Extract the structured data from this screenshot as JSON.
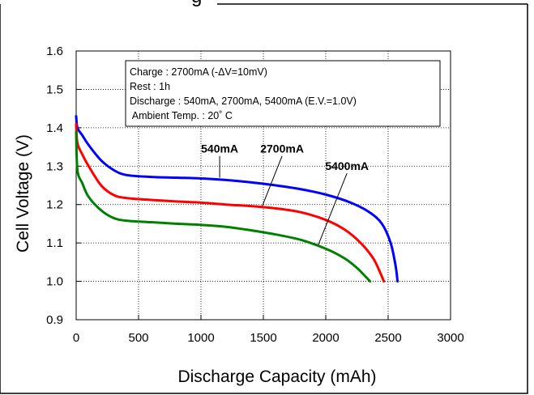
{
  "chart_data": {
    "type": "line",
    "title": "",
    "title_fragment": "g",
    "xlabel": "Discharge Capacity (mAh)",
    "ylabel": "Cell Voltage (V)",
    "xlim": [
      0,
      3000
    ],
    "ylim": [
      0.9,
      1.6
    ],
    "x_ticks": [
      "0",
      "500",
      "1000",
      "1500",
      "2000",
      "2500",
      "3000"
    ],
    "y_ticks": [
      "0.9",
      "1.0",
      "1.1",
      "1.2",
      "1.3",
      "1.4",
      "1.5",
      "1.6"
    ],
    "grid": true,
    "grid_style": "dotted",
    "conditions_box": {
      "position": "top-center",
      "lines": [
        "Charge : 2700mA  (-ΔV=10mV)",
        "Rest : 1h",
        "Discharge : 540mA,  2700mA, 5400mA (E.V.=1.0V)",
        " Ambient Temp. : 20˚ C"
      ]
    },
    "series": [
      {
        "name": "540mA",
        "color": "#0000ff",
        "label_at": [
          1150,
          1.335
        ],
        "pointer_to": [
          1150,
          1.27
        ],
        "points": [
          [
            0,
            1.43
          ],
          [
            10,
            1.4
          ],
          [
            50,
            1.38
          ],
          [
            100,
            1.355
          ],
          [
            200,
            1.315
          ],
          [
            300,
            1.29
          ],
          [
            400,
            1.277
          ],
          [
            600,
            1.272
          ],
          [
            800,
            1.27
          ],
          [
            1000,
            1.268
          ],
          [
            1200,
            1.264
          ],
          [
            1400,
            1.258
          ],
          [
            1600,
            1.25
          ],
          [
            1800,
            1.24
          ],
          [
            2000,
            1.226
          ],
          [
            2200,
            1.205
          ],
          [
            2350,
            1.18
          ],
          [
            2450,
            1.15
          ],
          [
            2520,
            1.1
          ],
          [
            2560,
            1.04
          ],
          [
            2575,
            1.0
          ]
        ]
      },
      {
        "name": "2700mA",
        "color": "#ff0000",
        "label_at": [
          1650,
          1.335
        ],
        "pointer_to": [
          1490,
          1.195
        ],
        "points": [
          [
            0,
            1.41
          ],
          [
            10,
            1.36
          ],
          [
            50,
            1.33
          ],
          [
            100,
            1.3
          ],
          [
            200,
            1.25
          ],
          [
            300,
            1.225
          ],
          [
            400,
            1.217
          ],
          [
            600,
            1.212
          ],
          [
            800,
            1.208
          ],
          [
            1000,
            1.205
          ],
          [
            1200,
            1.2
          ],
          [
            1400,
            1.196
          ],
          [
            1600,
            1.19
          ],
          [
            1800,
            1.18
          ],
          [
            2000,
            1.16
          ],
          [
            2150,
            1.135
          ],
          [
            2280,
            1.1
          ],
          [
            2380,
            1.06
          ],
          [
            2440,
            1.02
          ],
          [
            2465,
            1.0
          ]
        ]
      },
      {
        "name": "5400mA",
        "color": "#008000",
        "label_at": [
          2170,
          1.29
        ],
        "pointer_to": [
          1940,
          1.095
        ],
        "points": [
          [
            0,
            1.39
          ],
          [
            10,
            1.29
          ],
          [
            50,
            1.255
          ],
          [
            100,
            1.22
          ],
          [
            200,
            1.185
          ],
          [
            300,
            1.165
          ],
          [
            400,
            1.158
          ],
          [
            600,
            1.154
          ],
          [
            800,
            1.15
          ],
          [
            1000,
            1.147
          ],
          [
            1200,
            1.142
          ],
          [
            1400,
            1.133
          ],
          [
            1600,
            1.122
          ],
          [
            1800,
            1.108
          ],
          [
            2000,
            1.085
          ],
          [
            2150,
            1.06
          ],
          [
            2250,
            1.035
          ],
          [
            2320,
            1.012
          ],
          [
            2355,
            1.0
          ]
        ]
      }
    ]
  }
}
